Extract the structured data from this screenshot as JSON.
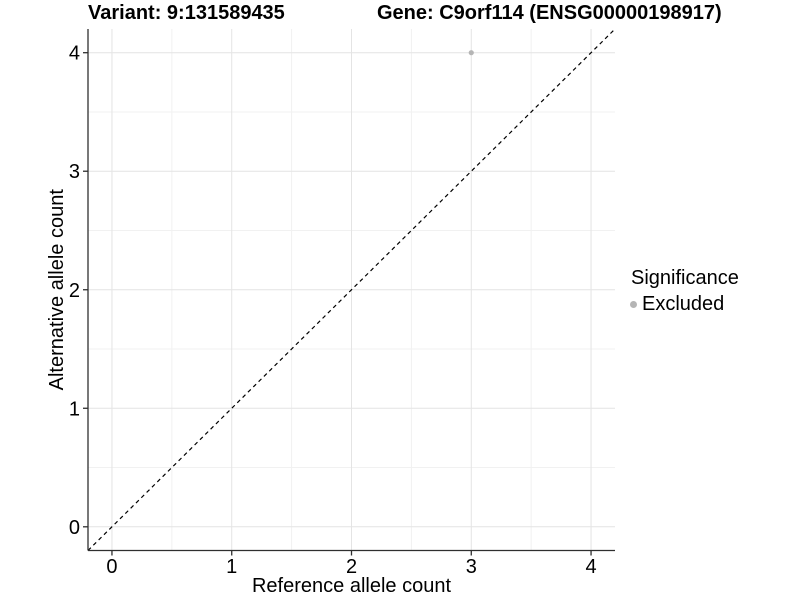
{
  "chart_data": {
    "type": "scatter",
    "title_left": "Variant: 9:131589435",
    "title_right": "Gene: C9orf114 (ENSG00000198917)",
    "xlabel": "Reference allele count",
    "ylabel": "Alternative allele count",
    "xlim": [
      -0.2,
      4.2
    ],
    "ylim": [
      -0.2,
      4.2
    ],
    "x_ticks": [
      0,
      1,
      2,
      3,
      4
    ],
    "y_ticks": [
      0,
      1,
      2,
      3,
      4
    ],
    "x_minor_ticks": [
      0.5,
      1.5,
      2.5,
      3.5
    ],
    "y_minor_ticks": [
      0.5,
      1.5,
      2.5,
      3.5
    ],
    "grid": true,
    "points": [
      {
        "x": 3,
        "y": 4,
        "series": "Excluded"
      }
    ],
    "reference_line": {
      "type": "identity",
      "style": "dashed",
      "from": [
        -0.2,
        -0.2
      ],
      "to": [
        4.2,
        4.2
      ]
    },
    "legend": {
      "title": "Significance",
      "position": "right",
      "entries": [
        {
          "label": "Excluded",
          "color": "#b5b5b5"
        }
      ]
    }
  },
  "colors": {
    "background": "#ffffff",
    "axis_line": "#2f2f2f",
    "tick_mark": "#2f2f2f",
    "grid_major": "#e4e4e4",
    "grid_minor": "#f1f1f1",
    "reference_line": "#000000",
    "point": "#b5b5b5",
    "text": "#000000"
  }
}
